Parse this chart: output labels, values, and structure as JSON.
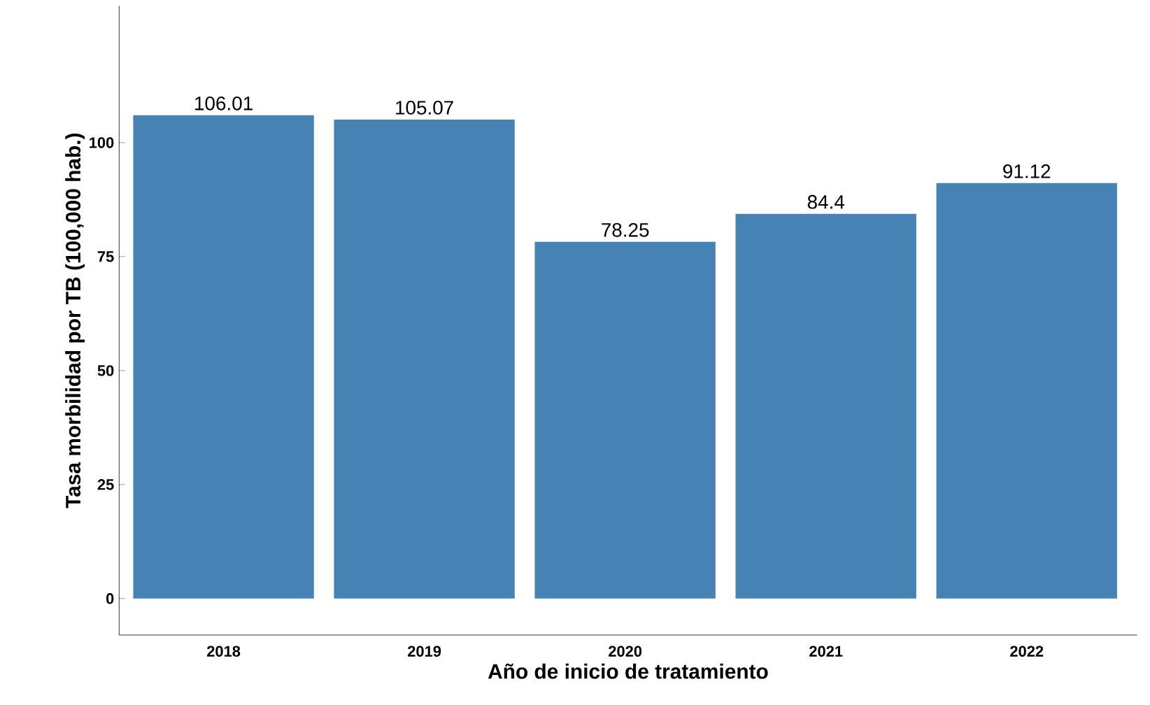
{
  "chart_data": {
    "type": "bar",
    "xlabel": "Año de inicio de tratamiento",
    "ylabel": "Tasa morbilidad por TB (100,000 hab.)",
    "categories": [
      "2018",
      "2019",
      "2020",
      "2021",
      "2022"
    ],
    "values": [
      106.01,
      105.07,
      78.25,
      84.4,
      91.12
    ],
    "color": "#4682b4",
    "data_labels": true,
    "ylim": [
      -8,
      130
    ],
    "yticks": [
      0,
      25,
      50,
      75,
      100
    ],
    "grid": false
  }
}
